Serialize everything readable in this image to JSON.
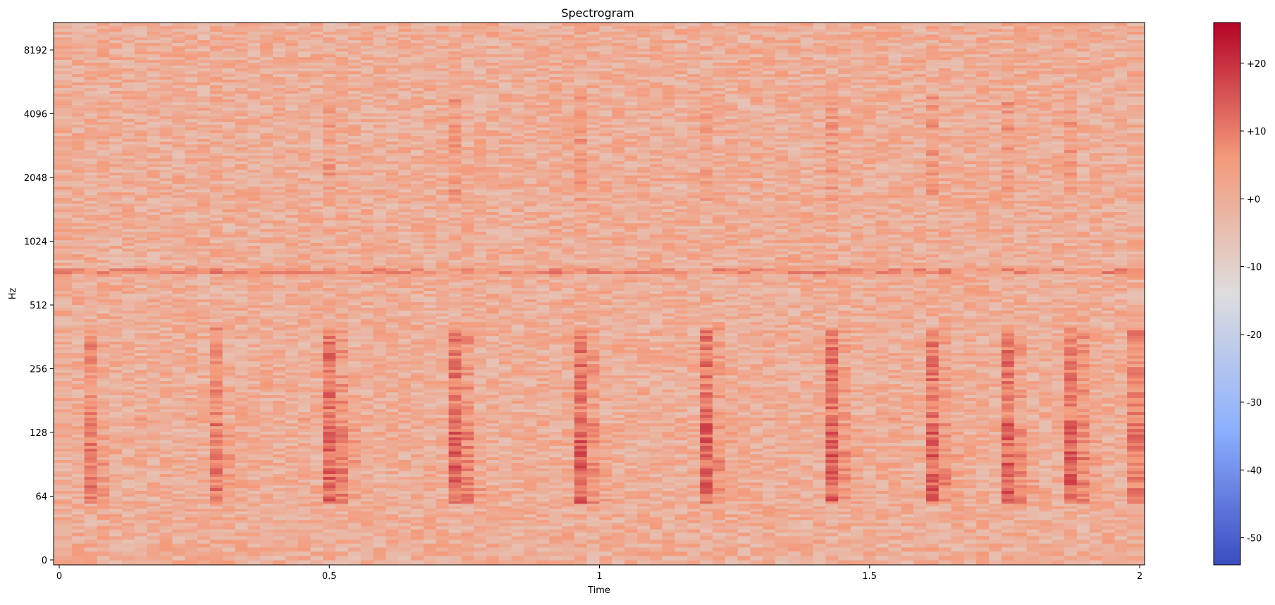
{
  "chart_data": {
    "type": "heatmap",
    "title": "Spectrogram",
    "xlabel": "Time",
    "ylabel": "Hz",
    "colormap": "coolwarm",
    "colors": {
      "low": "#3b4cc0",
      "mid": "#dddddd",
      "high": "#b40426"
    },
    "x_range": [
      0,
      2.0
    ],
    "x_ticks": [
      {
        "value": 0,
        "label": "0"
      },
      {
        "value": 0.5,
        "label": "0.5"
      },
      {
        "value": 1.0,
        "label": "1"
      },
      {
        "value": 1.5,
        "label": "1.5"
      },
      {
        "value": 2.0,
        "label": "2"
      }
    ],
    "y_scale": "log2 (with 0 at bottom)",
    "y_ticks": [
      {
        "value": 0,
        "label": "0"
      },
      {
        "value": 64,
        "label": "64"
      },
      {
        "value": 128,
        "label": "128"
      },
      {
        "value": 256,
        "label": "256"
      },
      {
        "value": 512,
        "label": "512"
      },
      {
        "value": 1024,
        "label": "1024"
      },
      {
        "value": 2048,
        "label": "2048"
      },
      {
        "value": 4096,
        "label": "4096"
      },
      {
        "value": 8192,
        "label": "8192"
      }
    ],
    "colorbar": {
      "range": [
        -54,
        26
      ],
      "ticks": [
        {
          "value": -50,
          "label": "-50"
        },
        {
          "value": -40,
          "label": "-40"
        },
        {
          "value": -30,
          "label": "-30"
        },
        {
          "value": -20,
          "label": "-20"
        },
        {
          "value": -10,
          "label": "-10"
        },
        {
          "value": 0,
          "label": "+0"
        },
        {
          "value": 10,
          "label": "+10"
        },
        {
          "value": 20,
          "label": "+20"
        }
      ]
    },
    "onsets_s": [
      0.05,
      0.28,
      0.51,
      0.74,
      0.97,
      1.2,
      1.43,
      1.62,
      1.76,
      1.88,
      1.98
    ],
    "sustained_bands_hz": [
      {
        "freq": 150,
        "level_db": 0
      },
      {
        "freq": 740,
        "level_db": 6
      }
    ]
  }
}
